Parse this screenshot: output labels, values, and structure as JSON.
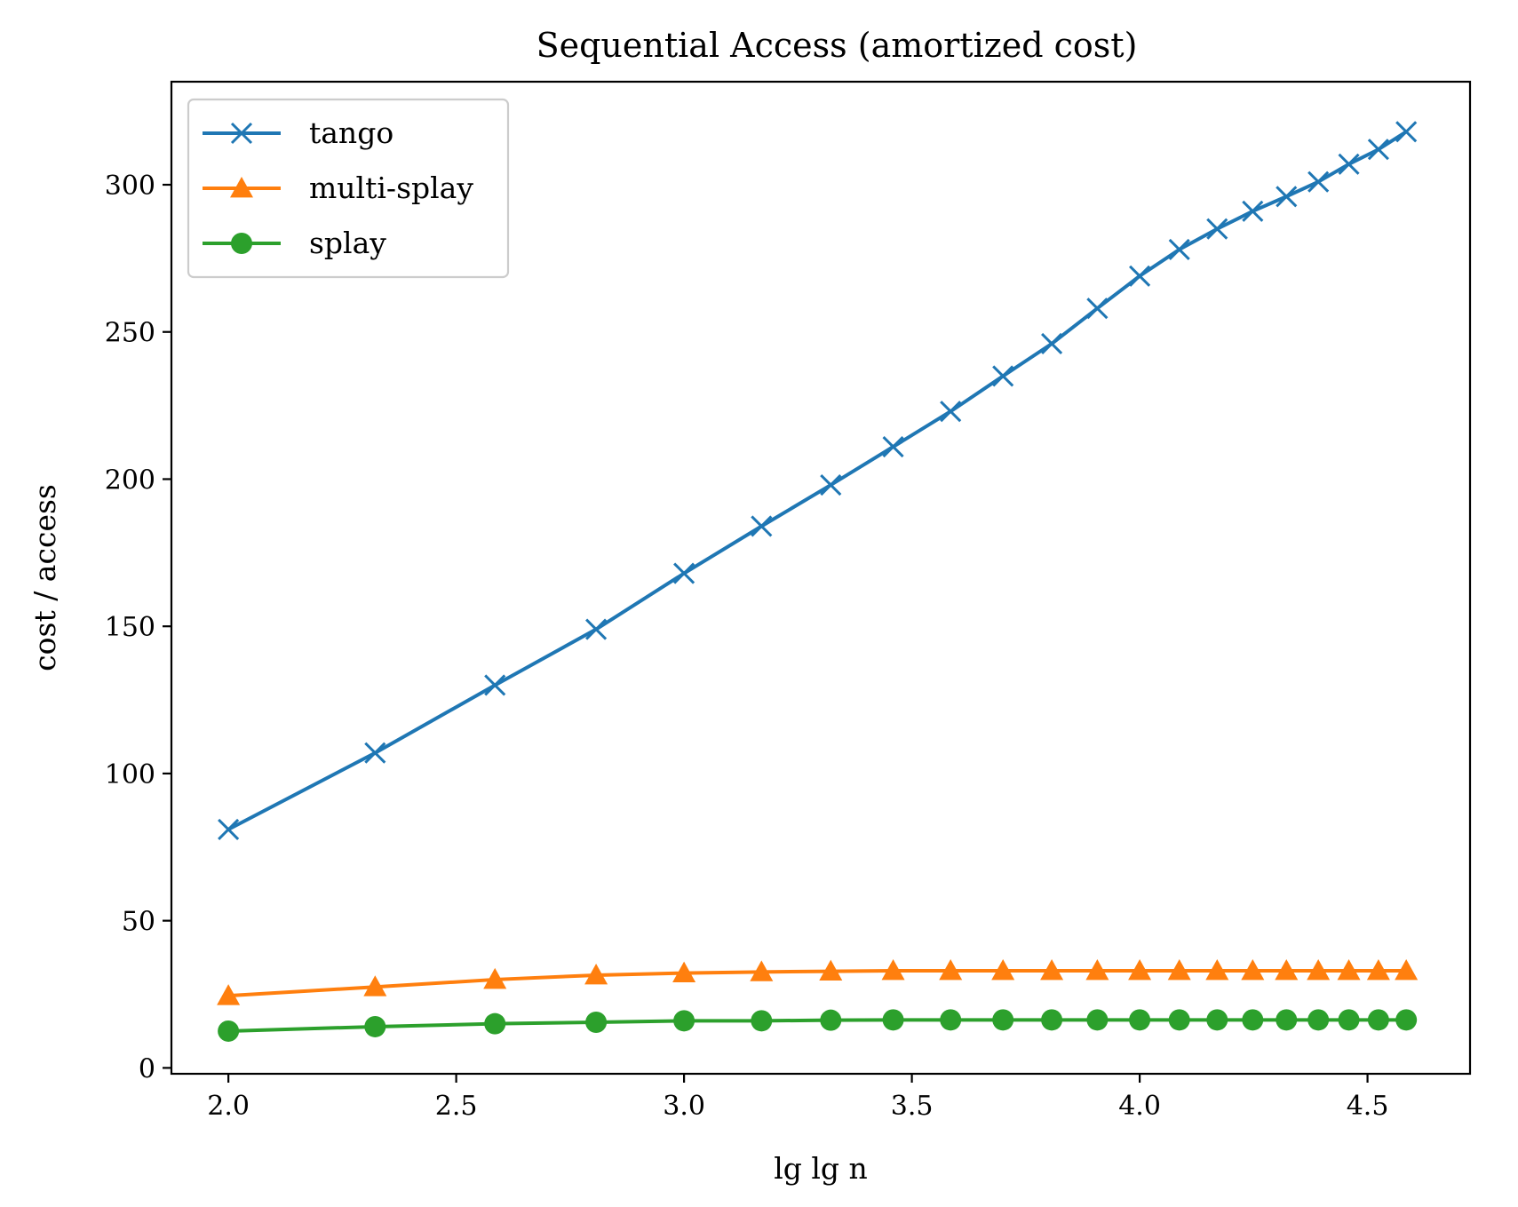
{
  "chart_data": {
    "type": "line",
    "title": "Sequential Access (amortized cost)",
    "xlabel": "lg lg n",
    "ylabel": "cost / access",
    "xlim": [
      1.875,
      4.725
    ],
    "ylim": [
      -2,
      335
    ],
    "xticks": [
      2.0,
      2.5,
      3.0,
      3.5,
      4.0,
      4.5
    ],
    "xtick_labels": [
      "2.0",
      "2.5",
      "3.0",
      "3.5",
      "4.0",
      "4.5"
    ],
    "yticks": [
      0,
      50,
      100,
      150,
      200,
      250,
      300
    ],
    "ytick_labels": [
      "0",
      "50",
      "100",
      "150",
      "200",
      "250",
      "300"
    ],
    "grid": false,
    "legend_position": "top-left",
    "x": [
      2.0,
      2.322,
      2.585,
      2.807,
      3.0,
      3.17,
      3.322,
      3.459,
      3.585,
      3.7,
      3.807,
      3.907,
      4.0,
      4.087,
      4.17,
      4.248,
      4.322,
      4.392,
      4.459,
      4.524,
      4.585
    ],
    "series": [
      {
        "name": "tango",
        "color": "#1f77b4",
        "marker": "x",
        "values": [
          81,
          107,
          130,
          149,
          168,
          184,
          198,
          211,
          223,
          235,
          246,
          258,
          269,
          278,
          285,
          291,
          296,
          301,
          307,
          312,
          318
        ]
      },
      {
        "name": "multi-splay",
        "color": "#ff7f0e",
        "marker": "triangle",
        "values": [
          24.5,
          27.5,
          30,
          31.5,
          32.2,
          32.6,
          32.8,
          33,
          33,
          33,
          33,
          33,
          33,
          33,
          33,
          33,
          33,
          33,
          33,
          33,
          33
        ]
      },
      {
        "name": "splay",
        "color": "#2ca02c",
        "marker": "circle",
        "values": [
          12.5,
          14,
          15,
          15.5,
          16,
          16,
          16.2,
          16.3,
          16.3,
          16.3,
          16.3,
          16.3,
          16.3,
          16.3,
          16.3,
          16.3,
          16.3,
          16.3,
          16.3,
          16.3,
          16.3
        ]
      }
    ]
  }
}
